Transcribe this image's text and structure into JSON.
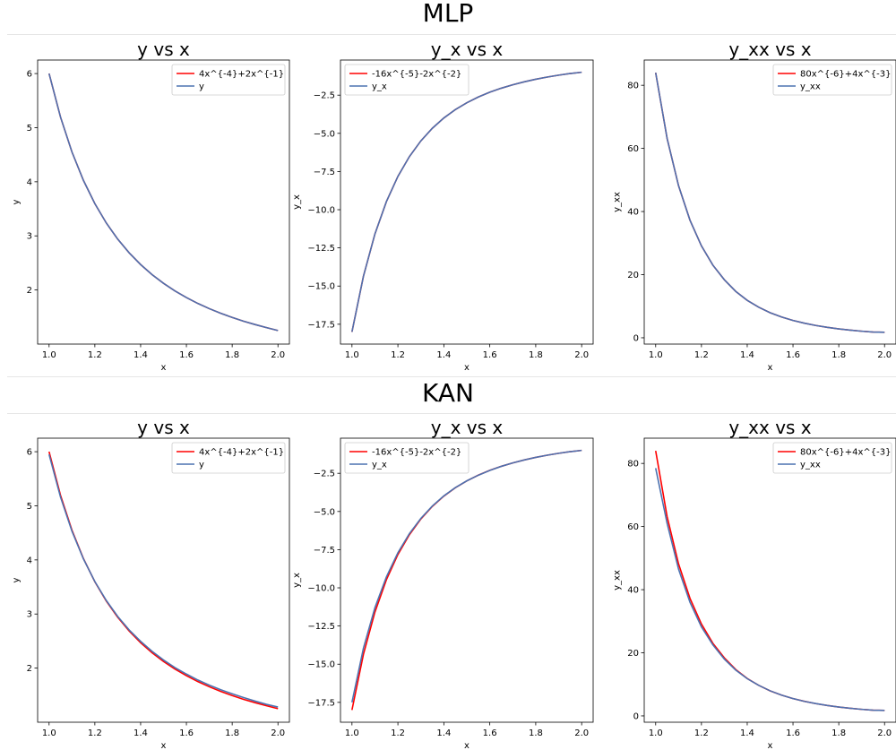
{
  "sections": [
    {
      "title": "MLP"
    },
    {
      "title": "KAN"
    }
  ],
  "chart_data": [
    {
      "type": "line",
      "section": "MLP",
      "title": "y vs x",
      "xlabel": "x",
      "ylabel": "y",
      "xlim": [
        0.95,
        2.05
      ],
      "ylim": [
        1.0,
        6.25
      ],
      "xticks": [
        "1.0",
        "1.2",
        "1.4",
        "1.6",
        "1.8",
        "2.0"
      ],
      "xtick_values": [
        1.0,
        1.2,
        1.4,
        1.6,
        1.8,
        2.0
      ],
      "yticks": [
        "2",
        "3",
        "4",
        "5",
        "6"
      ],
      "ytick_values": [
        2,
        3,
        4,
        5,
        6
      ],
      "legend": "top-right",
      "series": [
        {
          "name": "4x^{-4}+2x^{-1}",
          "color": "#ff0000",
          "x": [
            1.0,
            1.05,
            1.1,
            1.15,
            1.2,
            1.25,
            1.3,
            1.35,
            1.4,
            1.45,
            1.5,
            1.55,
            1.6,
            1.65,
            1.7,
            1.75,
            1.8,
            1.85,
            1.9,
            1.95,
            2.0
          ],
          "y": [
            6.0,
            5.195,
            4.55,
            4.026,
            3.596,
            3.238,
            2.939,
            2.686,
            2.47,
            2.284,
            2.123,
            1.982,
            1.86,
            1.751,
            1.655,
            1.569,
            1.492,
            1.423,
            1.361,
            1.304,
            1.25
          ]
        },
        {
          "name": "y",
          "color": "#4c72b0",
          "x": [
            1.0,
            1.05,
            1.1,
            1.15,
            1.2,
            1.25,
            1.3,
            1.35,
            1.4,
            1.45,
            1.5,
            1.55,
            1.6,
            1.65,
            1.7,
            1.75,
            1.8,
            1.85,
            1.9,
            1.95,
            2.0
          ],
          "y": [
            6.0,
            5.195,
            4.55,
            4.026,
            3.596,
            3.238,
            2.939,
            2.686,
            2.47,
            2.284,
            2.123,
            1.982,
            1.86,
            1.751,
            1.655,
            1.569,
            1.492,
            1.423,
            1.361,
            1.304,
            1.25
          ]
        }
      ]
    },
    {
      "type": "line",
      "section": "MLP",
      "title": "y_x vs x",
      "xlabel": "x",
      "ylabel": "y_x",
      "xlim": [
        0.95,
        2.05
      ],
      "ylim": [
        -18.8,
        -0.2
      ],
      "xticks": [
        "1.0",
        "1.2",
        "1.4",
        "1.6",
        "1.8",
        "2.0"
      ],
      "xtick_values": [
        1.0,
        1.2,
        1.4,
        1.6,
        1.8,
        2.0
      ],
      "yticks": [
        "−17.5",
        "−15.0",
        "−12.5",
        "−10.0",
        "−7.5",
        "−5.0",
        "−2.5"
      ],
      "ytick_values": [
        -17.5,
        -15.0,
        -12.5,
        -10.0,
        -7.5,
        -5.0,
        -2.5
      ],
      "legend": "top-left",
      "series": [
        {
          "name": "-16x^{-5}-2x^{-2}",
          "color": "#ff0000",
          "x": [
            1.0,
            1.05,
            1.1,
            1.15,
            1.2,
            1.25,
            1.3,
            1.35,
            1.4,
            1.45,
            1.5,
            1.55,
            1.6,
            1.65,
            1.7,
            1.75,
            1.8,
            1.85,
            1.9,
            1.95,
            2.0
          ],
          "y": [
            -18.0,
            -14.35,
            -11.588,
            -9.467,
            -7.819,
            -6.523,
            -5.493,
            -4.666,
            -3.995,
            -3.445,
            -2.996,
            -2.621,
            -2.307,
            -2.044,
            -1.819,
            -1.625,
            -1.459,
            -1.316,
            -1.19,
            -1.082,
            -1.0
          ]
        },
        {
          "name": "y_x",
          "color": "#4c72b0",
          "x": [
            1.0,
            1.05,
            1.1,
            1.15,
            1.2,
            1.25,
            1.3,
            1.35,
            1.4,
            1.45,
            1.5,
            1.55,
            1.6,
            1.65,
            1.7,
            1.75,
            1.8,
            1.85,
            1.9,
            1.95,
            2.0
          ],
          "y": [
            -18.0,
            -14.35,
            -11.588,
            -9.467,
            -7.819,
            -6.523,
            -5.493,
            -4.666,
            -3.995,
            -3.445,
            -2.996,
            -2.621,
            -2.307,
            -2.044,
            -1.819,
            -1.625,
            -1.459,
            -1.316,
            -1.19,
            -1.082,
            -1.0
          ]
        }
      ]
    },
    {
      "type": "line",
      "section": "MLP",
      "title": "y_xx vs x",
      "xlabel": "x",
      "ylabel": "y_xx",
      "xlim": [
        0.95,
        2.05
      ],
      "ylim": [
        -2.0,
        88.0
      ],
      "xticks": [
        "1.0",
        "1.2",
        "1.4",
        "1.6",
        "1.8",
        "2.0"
      ],
      "xtick_values": [
        1.0,
        1.2,
        1.4,
        1.6,
        1.8,
        2.0
      ],
      "yticks": [
        "0",
        "20",
        "40",
        "60",
        "80"
      ],
      "ytick_values": [
        0,
        20,
        40,
        60,
        80
      ],
      "legend": "top-right",
      "series": [
        {
          "name": "80x^{-6}+4x^{-3}",
          "color": "#ff0000",
          "x": [
            1.0,
            1.05,
            1.1,
            1.15,
            1.2,
            1.25,
            1.3,
            1.35,
            1.4,
            1.45,
            1.5,
            1.55,
            1.6,
            1.65,
            1.7,
            1.75,
            1.8,
            1.85,
            1.9,
            1.95,
            2.0
          ],
          "y": [
            84.0,
            63.15,
            48.166,
            37.234,
            29.108,
            22.997,
            18.391,
            14.685,
            11.867,
            9.683,
            7.947,
            6.574,
            5.495,
            4.614,
            3.886,
            3.305,
            2.82,
            2.415,
            2.078,
            1.806,
            1.75
          ]
        },
        {
          "name": "y_xx",
          "color": "#4c72b0",
          "x": [
            1.0,
            1.05,
            1.1,
            1.15,
            1.2,
            1.25,
            1.3,
            1.35,
            1.4,
            1.45,
            1.5,
            1.55,
            1.6,
            1.65,
            1.7,
            1.75,
            1.8,
            1.85,
            1.9,
            1.95,
            2.0
          ],
          "y": [
            84.0,
            63.15,
            48.166,
            37.234,
            29.108,
            22.997,
            18.391,
            14.685,
            11.867,
            9.683,
            7.947,
            6.574,
            5.495,
            4.614,
            3.886,
            3.305,
            2.82,
            2.415,
            2.078,
            1.806,
            1.75
          ]
        }
      ]
    },
    {
      "type": "line",
      "section": "KAN",
      "title": "y vs x",
      "xlabel": "x",
      "ylabel": "y",
      "xlim": [
        0.95,
        2.05
      ],
      "ylim": [
        1.0,
        6.25
      ],
      "xticks": [
        "1.0",
        "1.2",
        "1.4",
        "1.6",
        "1.8",
        "2.0"
      ],
      "xtick_values": [
        1.0,
        1.2,
        1.4,
        1.6,
        1.8,
        2.0
      ],
      "yticks": [
        "2",
        "3",
        "4",
        "5",
        "6"
      ],
      "ytick_values": [
        2,
        3,
        4,
        5,
        6
      ],
      "legend": "top-right",
      "series": [
        {
          "name": "4x^{-4}+2x^{-1}",
          "color": "#ff0000",
          "x": [
            1.0,
            1.05,
            1.1,
            1.15,
            1.2,
            1.25,
            1.3,
            1.35,
            1.4,
            1.45,
            1.5,
            1.55,
            1.6,
            1.65,
            1.7,
            1.75,
            1.8,
            1.85,
            1.9,
            1.95,
            2.0
          ],
          "y": [
            6.0,
            5.195,
            4.55,
            4.026,
            3.596,
            3.238,
            2.939,
            2.686,
            2.47,
            2.284,
            2.123,
            1.982,
            1.86,
            1.751,
            1.655,
            1.569,
            1.492,
            1.423,
            1.361,
            1.304,
            1.25
          ]
        },
        {
          "name": "y",
          "color": "#4c72b0",
          "x": [
            1.0,
            1.05,
            1.1,
            1.15,
            1.2,
            1.25,
            1.3,
            1.35,
            1.4,
            1.45,
            1.5,
            1.55,
            1.6,
            1.65,
            1.7,
            1.75,
            1.8,
            1.85,
            1.9,
            1.95,
            2.0
          ],
          "y": [
            5.95,
            5.16,
            4.53,
            4.02,
            3.6,
            3.25,
            2.955,
            2.705,
            2.495,
            2.31,
            2.15,
            2.01,
            1.89,
            1.78,
            1.685,
            1.6,
            1.525,
            1.455,
            1.39,
            1.33,
            1.28
          ]
        }
      ]
    },
    {
      "type": "line",
      "section": "KAN",
      "title": "y_x vs x",
      "xlabel": "x",
      "ylabel": "y_x",
      "xlim": [
        0.95,
        2.05
      ],
      "ylim": [
        -18.8,
        -0.2
      ],
      "xticks": [
        "1.0",
        "1.2",
        "1.4",
        "1.6",
        "1.8",
        "2.0"
      ],
      "xtick_values": [
        1.0,
        1.2,
        1.4,
        1.6,
        1.8,
        2.0
      ],
      "yticks": [
        "−17.5",
        "−15.0",
        "−12.5",
        "−10.0",
        "−7.5",
        "−5.0",
        "−2.5"
      ],
      "ytick_values": [
        -17.5,
        -15.0,
        -12.5,
        -10.0,
        -7.5,
        -5.0,
        -2.5
      ],
      "legend": "top-left",
      "series": [
        {
          "name": "-16x^{-5}-2x^{-2}",
          "color": "#ff0000",
          "x": [
            1.0,
            1.05,
            1.1,
            1.15,
            1.2,
            1.25,
            1.3,
            1.35,
            1.4,
            1.45,
            1.5,
            1.55,
            1.6,
            1.65,
            1.7,
            1.75,
            1.8,
            1.85,
            1.9,
            1.95,
            2.0
          ],
          "y": [
            -18.0,
            -14.35,
            -11.588,
            -9.467,
            -7.819,
            -6.523,
            -5.493,
            -4.666,
            -3.995,
            -3.445,
            -2.996,
            -2.621,
            -2.307,
            -2.044,
            -1.819,
            -1.625,
            -1.459,
            -1.316,
            -1.19,
            -1.082,
            -1.0
          ]
        },
        {
          "name": "y_x",
          "color": "#4c72b0",
          "x": [
            1.0,
            1.05,
            1.1,
            1.15,
            1.2,
            1.25,
            1.3,
            1.35,
            1.4,
            1.45,
            1.5,
            1.55,
            1.6,
            1.65,
            1.7,
            1.75,
            1.8,
            1.85,
            1.9,
            1.95,
            2.0
          ],
          "y": [
            -17.5,
            -13.95,
            -11.3,
            -9.28,
            -7.7,
            -6.45,
            -5.45,
            -4.64,
            -3.98,
            -3.44,
            -2.995,
            -2.625,
            -2.31,
            -2.045,
            -1.82,
            -1.625,
            -1.46,
            -1.316,
            -1.19,
            -1.082,
            -1.0
          ]
        }
      ]
    },
    {
      "type": "line",
      "section": "KAN",
      "title": "y_xx vs x",
      "xlabel": "x",
      "ylabel": "y_xx",
      "xlim": [
        0.95,
        2.05
      ],
      "ylim": [
        -2.0,
        88.0
      ],
      "xticks": [
        "1.0",
        "1.2",
        "1.4",
        "1.6",
        "1.8",
        "2.0"
      ],
      "xtick_values": [
        1.0,
        1.2,
        1.4,
        1.6,
        1.8,
        2.0
      ],
      "yticks": [
        "0",
        "20",
        "40",
        "60",
        "80"
      ],
      "ytick_values": [
        0,
        20,
        40,
        60,
        80
      ],
      "legend": "top-right",
      "series": [
        {
          "name": "80x^{-6}+4x^{-3}",
          "color": "#ff0000",
          "x": [
            1.0,
            1.05,
            1.1,
            1.15,
            1.2,
            1.25,
            1.3,
            1.35,
            1.4,
            1.45,
            1.5,
            1.55,
            1.6,
            1.65,
            1.7,
            1.75,
            1.8,
            1.85,
            1.9,
            1.95,
            2.0
          ],
          "y": [
            84.0,
            63.15,
            48.166,
            37.234,
            29.108,
            22.997,
            18.391,
            14.685,
            11.867,
            9.683,
            7.947,
            6.574,
            5.495,
            4.614,
            3.886,
            3.305,
            2.82,
            2.415,
            2.078,
            1.806,
            1.75
          ]
        },
        {
          "name": "y_xx",
          "color": "#4c72b0",
          "x": [
            1.0,
            1.05,
            1.1,
            1.15,
            1.2,
            1.25,
            1.3,
            1.35,
            1.4,
            1.45,
            1.5,
            1.55,
            1.6,
            1.65,
            1.7,
            1.75,
            1.8,
            1.85,
            1.9,
            1.95,
            2.0
          ],
          "y": [
            78.5,
            61.0,
            46.5,
            36.0,
            28.2,
            22.5,
            18.0,
            14.5,
            11.8,
            9.7,
            7.95,
            6.6,
            5.5,
            4.6,
            3.9,
            3.3,
            2.82,
            2.42,
            2.08,
            1.81,
            1.75
          ]
        }
      ]
    }
  ]
}
